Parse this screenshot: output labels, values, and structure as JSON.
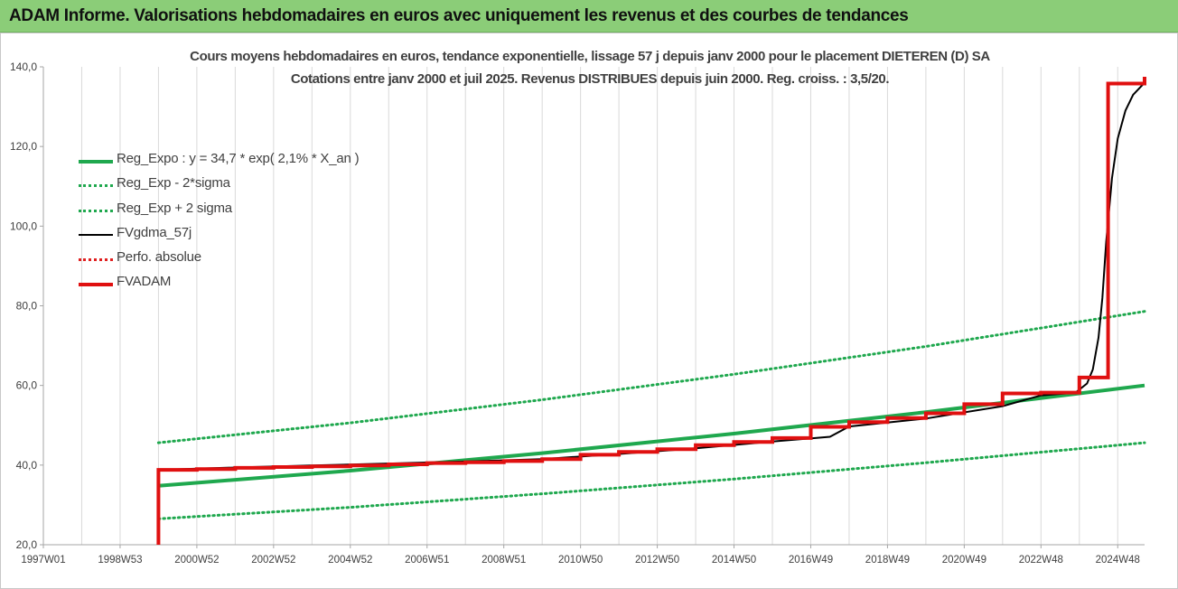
{
  "banner": {
    "title": "ADAM Informe. Valorisations hebdomadaires en euros avec uniquement les revenus et des courbes de tendances"
  },
  "chart_data": {
    "type": "line",
    "title": "Cours moyens hebdomadaires en euros, tendance exponentielle, lissage 57 j depuis janv 2000 pour le placement DIETEREN (D) SA",
    "subtitle": "Cotations entre janv 2000 et juil 2025. Revenus DISTRIBUES depuis juin 2000. Reg. croiss. : 3,5/20.",
    "xlabel": "",
    "ylabel": "",
    "ylim": [
      20,
      140
    ],
    "xlim": [
      1997.0,
      2025.7
    ],
    "grid": {
      "vertical": true,
      "horizontal": false
    },
    "legend_position": "top-left",
    "y_ticks": [
      "20,0",
      "40,0",
      "60,0",
      "80,0",
      "100,0",
      "120,0",
      "140,0"
    ],
    "y_tick_values": [
      20,
      40,
      60,
      80,
      100,
      120,
      140
    ],
    "x_ticks": [
      "1997W01",
      "1998W53",
      "2000W52",
      "2002W52",
      "2004W52",
      "2006W51",
      "2008W51",
      "2010W50",
      "2012W50",
      "2014W50",
      "2016W49",
      "2018W49",
      "2020W49",
      "2022W48",
      "2024W48"
    ],
    "x_tick_values": [
      1997.0,
      1999.0,
      2001.0,
      2003.0,
      2005.0,
      2007.0,
      2009.0,
      2011.0,
      2013.0,
      2015.0,
      2017.0,
      2019.0,
      2021.0,
      2023.0,
      2025.0
    ],
    "series": [
      {
        "name": "Reg_Expo : y = 34,7 * exp( 2,1% *  X_an )",
        "color": "#1fa84e",
        "style": "solid",
        "x": [
          2000.0,
          2005.0,
          2010.0,
          2015.0,
          2020.0,
          2025.7
        ],
        "y": [
          34.8,
          38.6,
          43.0,
          47.9,
          53.3,
          60.0
        ]
      },
      {
        "name": "Reg_Exp - 2*sigma",
        "color": "#1fa84e",
        "style": "dotted",
        "x": [
          2000.0,
          2005.0,
          2010.0,
          2015.0,
          2020.0,
          2025.7
        ],
        "y": [
          26.5,
          29.4,
          32.8,
          36.5,
          40.6,
          45.6
        ]
      },
      {
        "name": "Reg_Exp + 2 sigma",
        "color": "#1fa84e",
        "style": "dotted",
        "x": [
          2000.0,
          2005.0,
          2010.0,
          2015.0,
          2020.0,
          2025.7
        ],
        "y": [
          45.6,
          50.6,
          56.4,
          62.8,
          69.8,
          78.6
        ]
      },
      {
        "name": "FVgdma_57j",
        "color": "#000000",
        "style": "solid",
        "x": [
          2000.0,
          2002.0,
          2004.0,
          2006.0,
          2008.0,
          2010.0,
          2012.0,
          2014.0,
          2016.0,
          2017.5,
          2018.0,
          2020.0,
          2022.0,
          2023.0,
          2023.9,
          2024.2,
          2024.35,
          2024.5,
          2024.6,
          2024.7,
          2024.85,
          2025.0,
          2025.2,
          2025.4,
          2025.7
        ],
        "y": [
          38.8,
          39.4,
          39.9,
          40.4,
          40.9,
          41.5,
          42.8,
          44.2,
          45.9,
          47.1,
          49.7,
          51.7,
          54.8,
          57.5,
          58.2,
          60.5,
          64.0,
          72.0,
          82.0,
          96.0,
          112.0,
          122.0,
          129.0,
          133.0,
          136.0
        ]
      },
      {
        "name": "Perfo. absolue",
        "color": "#e02020",
        "style": "dotted",
        "x": [],
        "y": []
      },
      {
        "name": "FVADAM",
        "color": "#e01010",
        "style": "solid",
        "x": [
          2000.0,
          2000.0,
          2001.0,
          2001.0,
          2002.0,
          2002.0,
          2003.0,
          2003.0,
          2004.0,
          2004.0,
          2005.0,
          2005.0,
          2006.0,
          2006.0,
          2007.0,
          2007.0,
          2008.0,
          2008.0,
          2009.0,
          2009.0,
          2010.0,
          2010.0,
          2011.0,
          2011.0,
          2012.0,
          2012.0,
          2013.0,
          2013.0,
          2014.0,
          2014.0,
          2015.0,
          2015.0,
          2016.0,
          2016.0,
          2017.0,
          2017.0,
          2018.0,
          2018.0,
          2019.0,
          2019.0,
          2020.0,
          2020.0,
          2021.0,
          2021.0,
          2022.0,
          2022.0,
          2023.0,
          2023.0,
          2024.0,
          2024.0,
          2024.75,
          2024.75,
          2025.7,
          2025.7
        ],
        "y": [
          20.0,
          38.8,
          38.8,
          39.0,
          39.0,
          39.3,
          39.3,
          39.5,
          39.5,
          39.7,
          39.7,
          39.9,
          39.9,
          40.2,
          40.2,
          40.5,
          40.5,
          40.7,
          40.7,
          41.0,
          41.0,
          41.5,
          41.5,
          42.6,
          42.6,
          43.3,
          43.3,
          44.0,
          44.0,
          45.0,
          45.0,
          45.8,
          45.8,
          46.8,
          46.8,
          49.6,
          49.6,
          50.8,
          50.8,
          51.8,
          51.8,
          53.0,
          53.0,
          55.3,
          55.3,
          58.0,
          58.0,
          58.2,
          58.2,
          62.0,
          62.0,
          135.8,
          135.8,
          137.5
        ]
      }
    ]
  }
}
